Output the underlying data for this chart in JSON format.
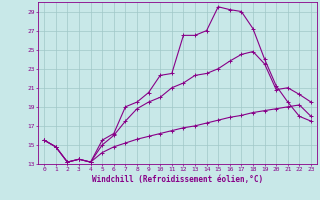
{
  "xlabel": "Windchill (Refroidissement éolien,°C)",
  "bg_color": "#c8e8e8",
  "grid_color": "#a0c8c8",
  "line_color": "#880088",
  "xlim": [
    -0.5,
    23.5
  ],
  "ylim": [
    13,
    30
  ],
  "xticks": [
    0,
    1,
    2,
    3,
    4,
    5,
    6,
    7,
    8,
    9,
    10,
    11,
    12,
    13,
    14,
    15,
    16,
    17,
    18,
    19,
    20,
    21,
    22,
    23
  ],
  "yticks": [
    13,
    15,
    17,
    19,
    21,
    23,
    25,
    27,
    29
  ],
  "line1_x": [
    0,
    1,
    2,
    3,
    4,
    5,
    6,
    7,
    8,
    9,
    10,
    11,
    12,
    13,
    14,
    15,
    16,
    17,
    18,
    19,
    20,
    21,
    22,
    23
  ],
  "line1_y": [
    15.5,
    14.8,
    13.2,
    13.5,
    13.2,
    15.5,
    16.2,
    19.0,
    19.5,
    20.5,
    22.3,
    22.5,
    26.5,
    26.5,
    27.0,
    29.5,
    29.2,
    29.0,
    27.2,
    24.0,
    21.2,
    19.5,
    18.0,
    17.5
  ],
  "line2_x": [
    0,
    1,
    2,
    3,
    4,
    5,
    6,
    7,
    8,
    9,
    10,
    11,
    12,
    13,
    14,
    15,
    16,
    17,
    18,
    19,
    20,
    21,
    22,
    23
  ],
  "line2_y": [
    15.5,
    14.8,
    13.2,
    13.5,
    13.2,
    15.0,
    16.0,
    17.5,
    18.8,
    19.5,
    20.0,
    21.0,
    21.5,
    22.3,
    22.5,
    23.0,
    23.8,
    24.5,
    24.8,
    23.5,
    20.8,
    21.0,
    20.3,
    19.5
  ],
  "line3_x": [
    0,
    1,
    2,
    3,
    4,
    5,
    6,
    7,
    8,
    9,
    10,
    11,
    12,
    13,
    14,
    15,
    16,
    17,
    18,
    19,
    20,
    21,
    22,
    23
  ],
  "line3_y": [
    15.5,
    14.8,
    13.2,
    13.5,
    13.2,
    14.2,
    14.8,
    15.2,
    15.6,
    15.9,
    16.2,
    16.5,
    16.8,
    17.0,
    17.3,
    17.6,
    17.9,
    18.1,
    18.4,
    18.6,
    18.8,
    19.0,
    19.2,
    18.0
  ],
  "marker": "+",
  "markersize": 3,
  "linewidth": 0.8,
  "tick_fontsize": 4.5,
  "xlabel_fontsize": 5.5
}
